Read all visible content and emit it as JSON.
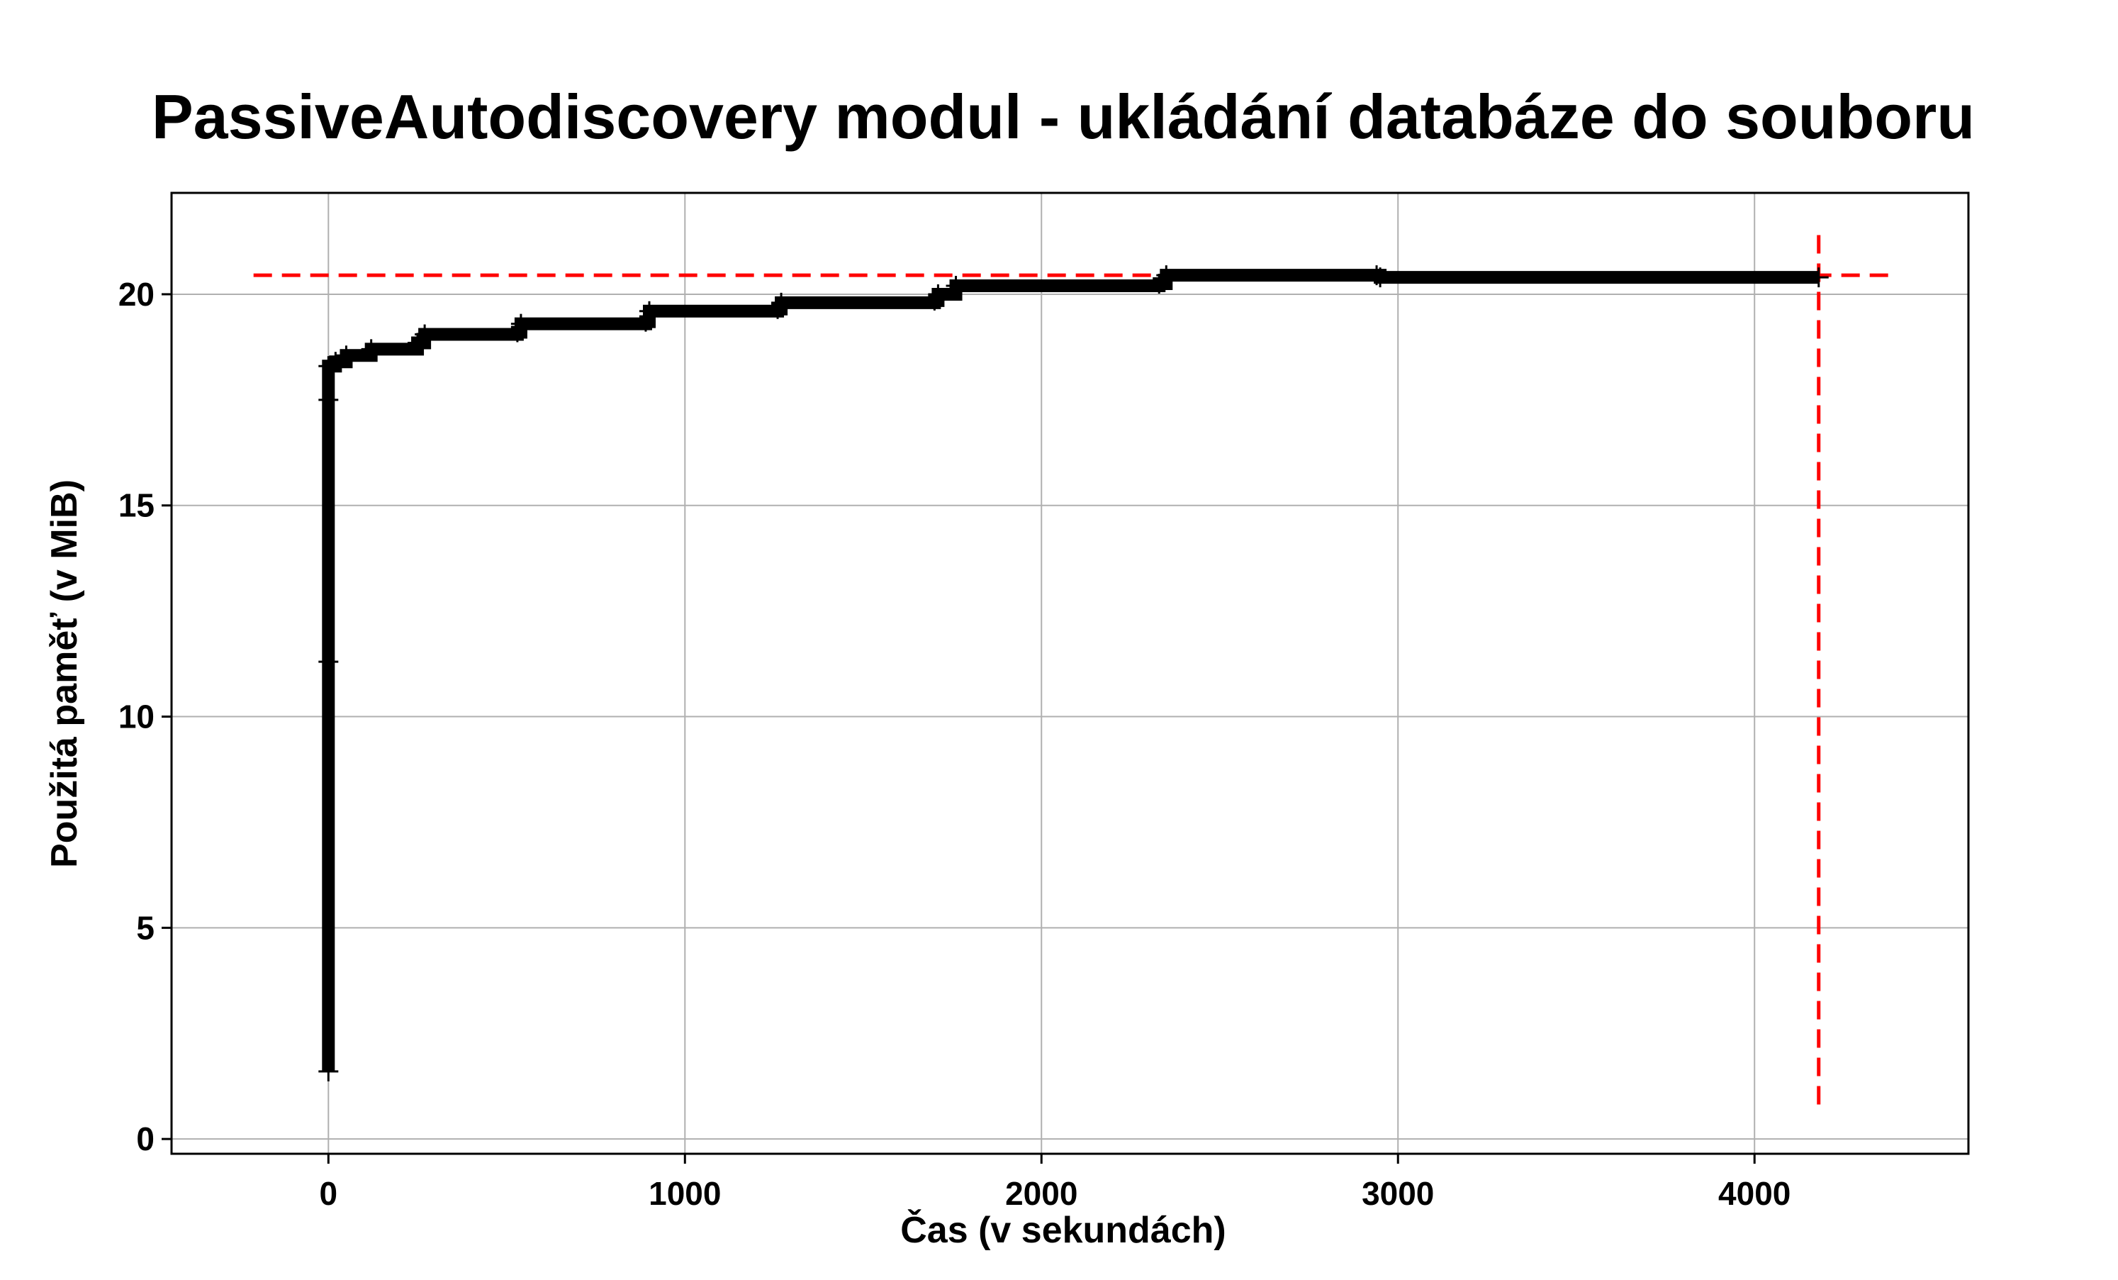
{
  "chart_data": {
    "type": "line",
    "title": "PassiveAutodiscovery modul - ukládání databáze do souboru",
    "xlabel": "Čas (v sekundách)",
    "ylabel": "Použitá paměť (v MiB)",
    "xlim": [
      -440,
      4600
    ],
    "ylim": [
      -0.35,
      22.4
    ],
    "xticks": [
      0,
      1000,
      2000,
      3000,
      4000
    ],
    "yticks": [
      0,
      5,
      10,
      15,
      20
    ],
    "grid": true,
    "legend": "none",
    "series": [
      {
        "color": "#000000",
        "style": "step-with-markers",
        "points": [
          [
            0,
            1.6
          ],
          [
            0,
            11.3
          ],
          [
            0,
            17.5
          ],
          [
            0,
            18.3
          ],
          [
            20,
            18.4
          ],
          [
            50,
            18.55
          ],
          [
            120,
            18.7
          ],
          [
            250,
            18.85
          ],
          [
            270,
            19.05
          ],
          [
            530,
            19.1
          ],
          [
            540,
            19.3
          ],
          [
            890,
            19.35
          ],
          [
            900,
            19.6
          ],
          [
            1260,
            19.65
          ],
          [
            1270,
            19.8
          ],
          [
            1700,
            19.85
          ],
          [
            1710,
            20.0
          ],
          [
            1760,
            20.2
          ],
          [
            2330,
            20.25
          ],
          [
            2350,
            20.45
          ],
          [
            2940,
            20.45
          ],
          [
            2950,
            20.4
          ],
          [
            4180,
            20.4
          ]
        ]
      }
    ],
    "reference_lines": [
      {
        "orientation": "horizontal",
        "value": 20.45,
        "from": -210,
        "to": 4380,
        "color": "#ff0000",
        "style": "dashed"
      },
      {
        "orientation": "vertical",
        "value": 4180,
        "from": 0.7,
        "to": 21.4,
        "color": "#ff0000",
        "style": "dashed"
      }
    ]
  }
}
